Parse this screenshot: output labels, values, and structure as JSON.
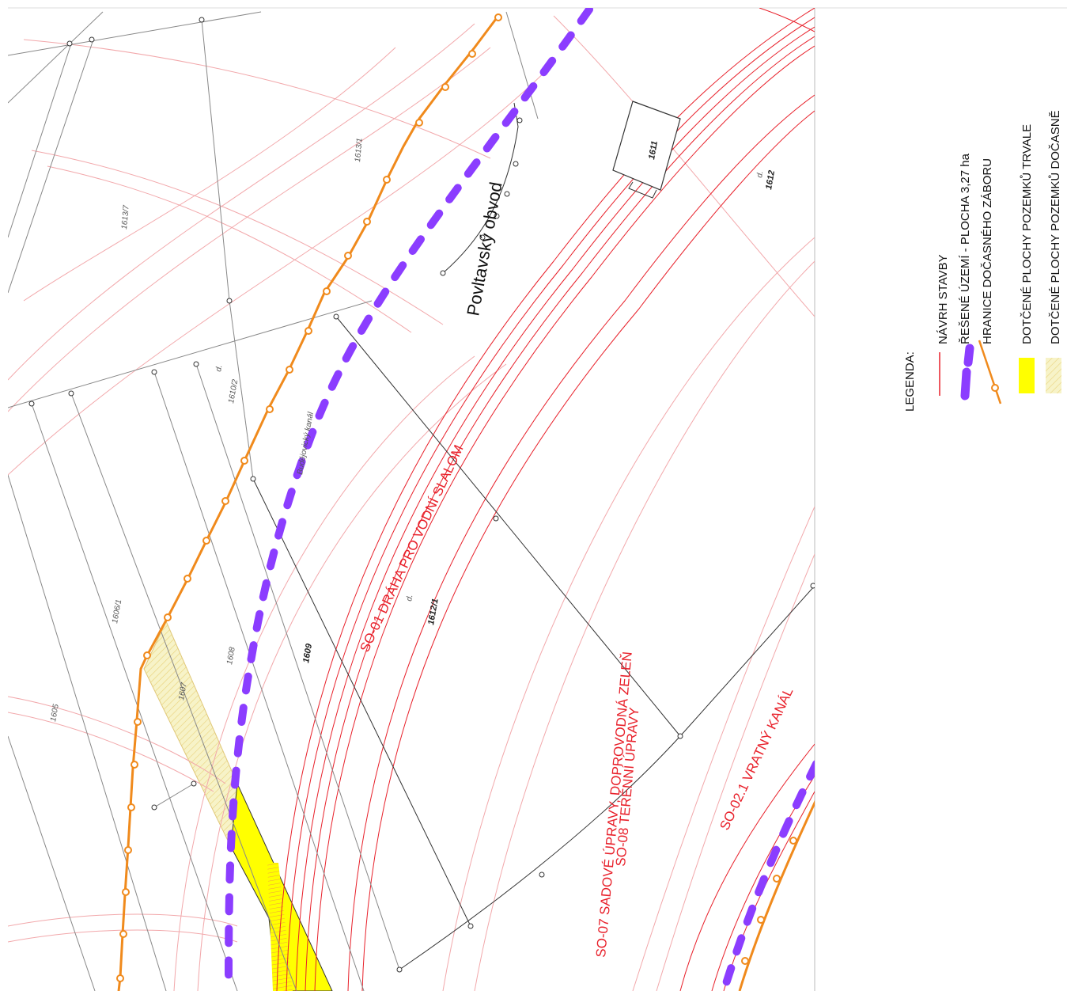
{
  "legend": {
    "title": "LEGENDA:",
    "items": [
      {
        "label": "NÁVRH STAVBY",
        "symbol": "red-line-icon",
        "color": "#e8202a"
      },
      {
        "label": "ŘEŠENÉ ÚZEMÍ - PLOCHA 3,27 ha",
        "symbol": "purple-dash-icon",
        "color": "#8b3dff"
      },
      {
        "label": "HRANICE DOČASNÉHO ZÁBORU",
        "symbol": "orange-dotted-line-icon",
        "color": "#f08a1c"
      },
      {
        "label": "DOTČENÉ PLOCHY POZEMKŮ TRVALE",
        "symbol": "yellow-swatch-icon",
        "color": "#ffff00"
      },
      {
        "label": "DOTČENÉ PLOCHY POZEMKŮ DOČASNĚ",
        "symbol": "hatched-swatch-icon",
        "color": "#f5f0c0"
      }
    ]
  },
  "labels": {
    "so01": "SO-01 DRÁHA PRO VODNÍ SLALOM",
    "so07": "SO-07 SADOVÉ ÚPRAVY, DOPROVODNÁ ZELEŇ",
    "so08": "SO-08 TERÉNNÍ ÚPRAVY",
    "so02": "SO-02.1 VRATNÝ KANÁL",
    "district": "Povltavský obvod",
    "street": "Budějovický kanál"
  },
  "parcels": [
    "1613/7",
    "1613/1",
    "1610/2",
    "1606/1",
    "1605",
    "1607",
    "1608",
    "1609",
    "1612/1",
    "1611",
    "1612"
  ],
  "parcel_prefix": "d."
}
